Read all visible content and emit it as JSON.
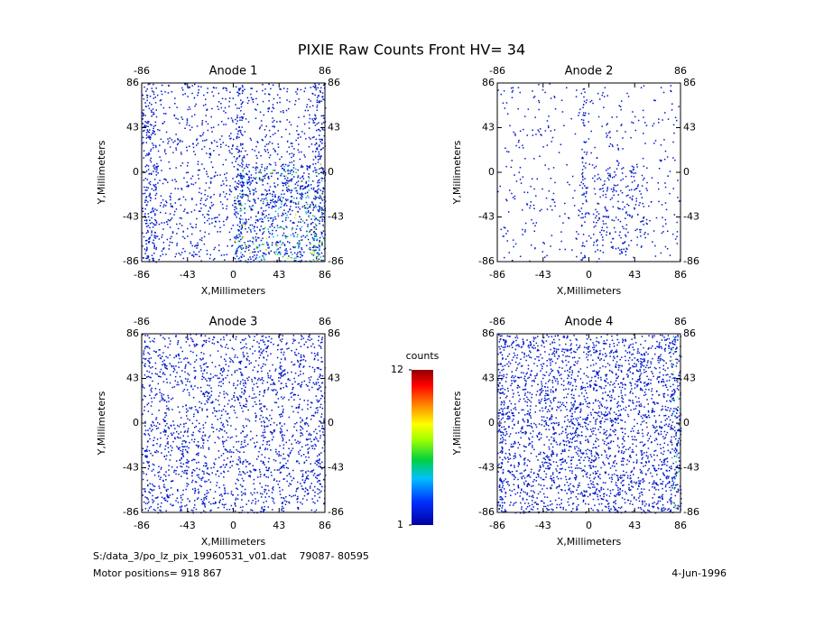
{
  "title": "PIXIE Raw Counts Front HV= 34",
  "chart_data": [
    {
      "type": "heatmap",
      "title": "Anode 1",
      "xlabel": "X,Millimeters",
      "ylabel": "Y,Millimeters",
      "xlim": [
        -86,
        86
      ],
      "ylim": [
        -86,
        86
      ],
      "xticks": [
        -86,
        -43,
        0,
        43,
        86
      ],
      "yticks": [
        -86,
        -43,
        0,
        43,
        86
      ]
    },
    {
      "type": "heatmap",
      "title": "Anode 2",
      "xlabel": "X,Millimeters",
      "ylabel": "Y,Millimeters",
      "xlim": [
        -86,
        86
      ],
      "ylim": [
        -86,
        86
      ],
      "xticks": [
        -86,
        -43,
        0,
        43,
        86
      ],
      "yticks": [
        -86,
        -43,
        0,
        43,
        86
      ]
    },
    {
      "type": "heatmap",
      "title": "Anode 3",
      "xlabel": "X,Millimeters",
      "ylabel": "Y,Millimeters",
      "xlim": [
        -86,
        86
      ],
      "ylim": [
        -86,
        86
      ],
      "xticks": [
        -86,
        -43,
        0,
        43,
        86
      ],
      "yticks": [
        -86,
        -43,
        0,
        43,
        86
      ]
    },
    {
      "type": "heatmap",
      "title": "Anode 4",
      "xlabel": "X,Millimeters",
      "ylabel": "Y,Millimeters",
      "xlim": [
        -86,
        86
      ],
      "ylim": [
        -86,
        86
      ],
      "xticks": [
        -86,
        -43,
        0,
        43,
        86
      ],
      "yticks": [
        -86,
        -43,
        0,
        43,
        86
      ]
    }
  ],
  "colorbar": {
    "label": "counts",
    "lim": [
      1,
      12
    ],
    "ticks": [
      1,
      12
    ]
  },
  "footer": {
    "file": "S:/data_3/po_lz_pix_19960531_v01.dat    79087- 80595",
    "motor": "Motor positions= 918 867",
    "date": "4-Jun-1996"
  }
}
